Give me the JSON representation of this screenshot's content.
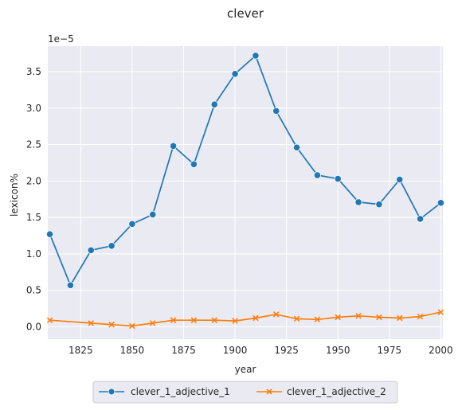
{
  "chart_data": {
    "type": "line",
    "title": "clever",
    "xlabel": "year",
    "ylabel": "lexicon%",
    "y_scale_label": "1e−5",
    "xlim": [
      1809,
      2001
    ],
    "ylim": [
      -0.17,
      3.85
    ],
    "x_ticks": [
      1825,
      1850,
      1875,
      1900,
      1925,
      1950,
      1975,
      2000
    ],
    "y_ticks": [
      0.0,
      0.5,
      1.0,
      1.5,
      2.0,
      2.5,
      3.0,
      3.5
    ],
    "grid": true,
    "legend_position": "bottom-center",
    "x": [
      1810,
      1820,
      1830,
      1840,
      1850,
      1860,
      1870,
      1880,
      1890,
      1900,
      1910,
      1920,
      1930,
      1940,
      1950,
      1960,
      1970,
      1980,
      1990,
      2000
    ],
    "series": [
      {
        "name": "clever_1_adjective_1",
        "color": "#1f77b4",
        "marker": "circle",
        "values": [
          1.27,
          0.57,
          1.05,
          1.11,
          1.41,
          1.54,
          2.48,
          2.23,
          3.05,
          3.47,
          3.72,
          2.96,
          2.46,
          2.08,
          2.03,
          1.71,
          1.68,
          2.02,
          1.48,
          1.7
        ]
      },
      {
        "name": "clever_1_adjective_2",
        "color": "#ff7f0e",
        "marker": "x",
        "values": [
          0.09,
          null,
          0.05,
          0.03,
          0.01,
          0.05,
          0.09,
          0.09,
          0.09,
          0.08,
          0.12,
          0.17,
          0.11,
          0.1,
          0.13,
          0.15,
          0.13,
          0.12,
          0.14,
          0.2
        ]
      }
    ]
  }
}
